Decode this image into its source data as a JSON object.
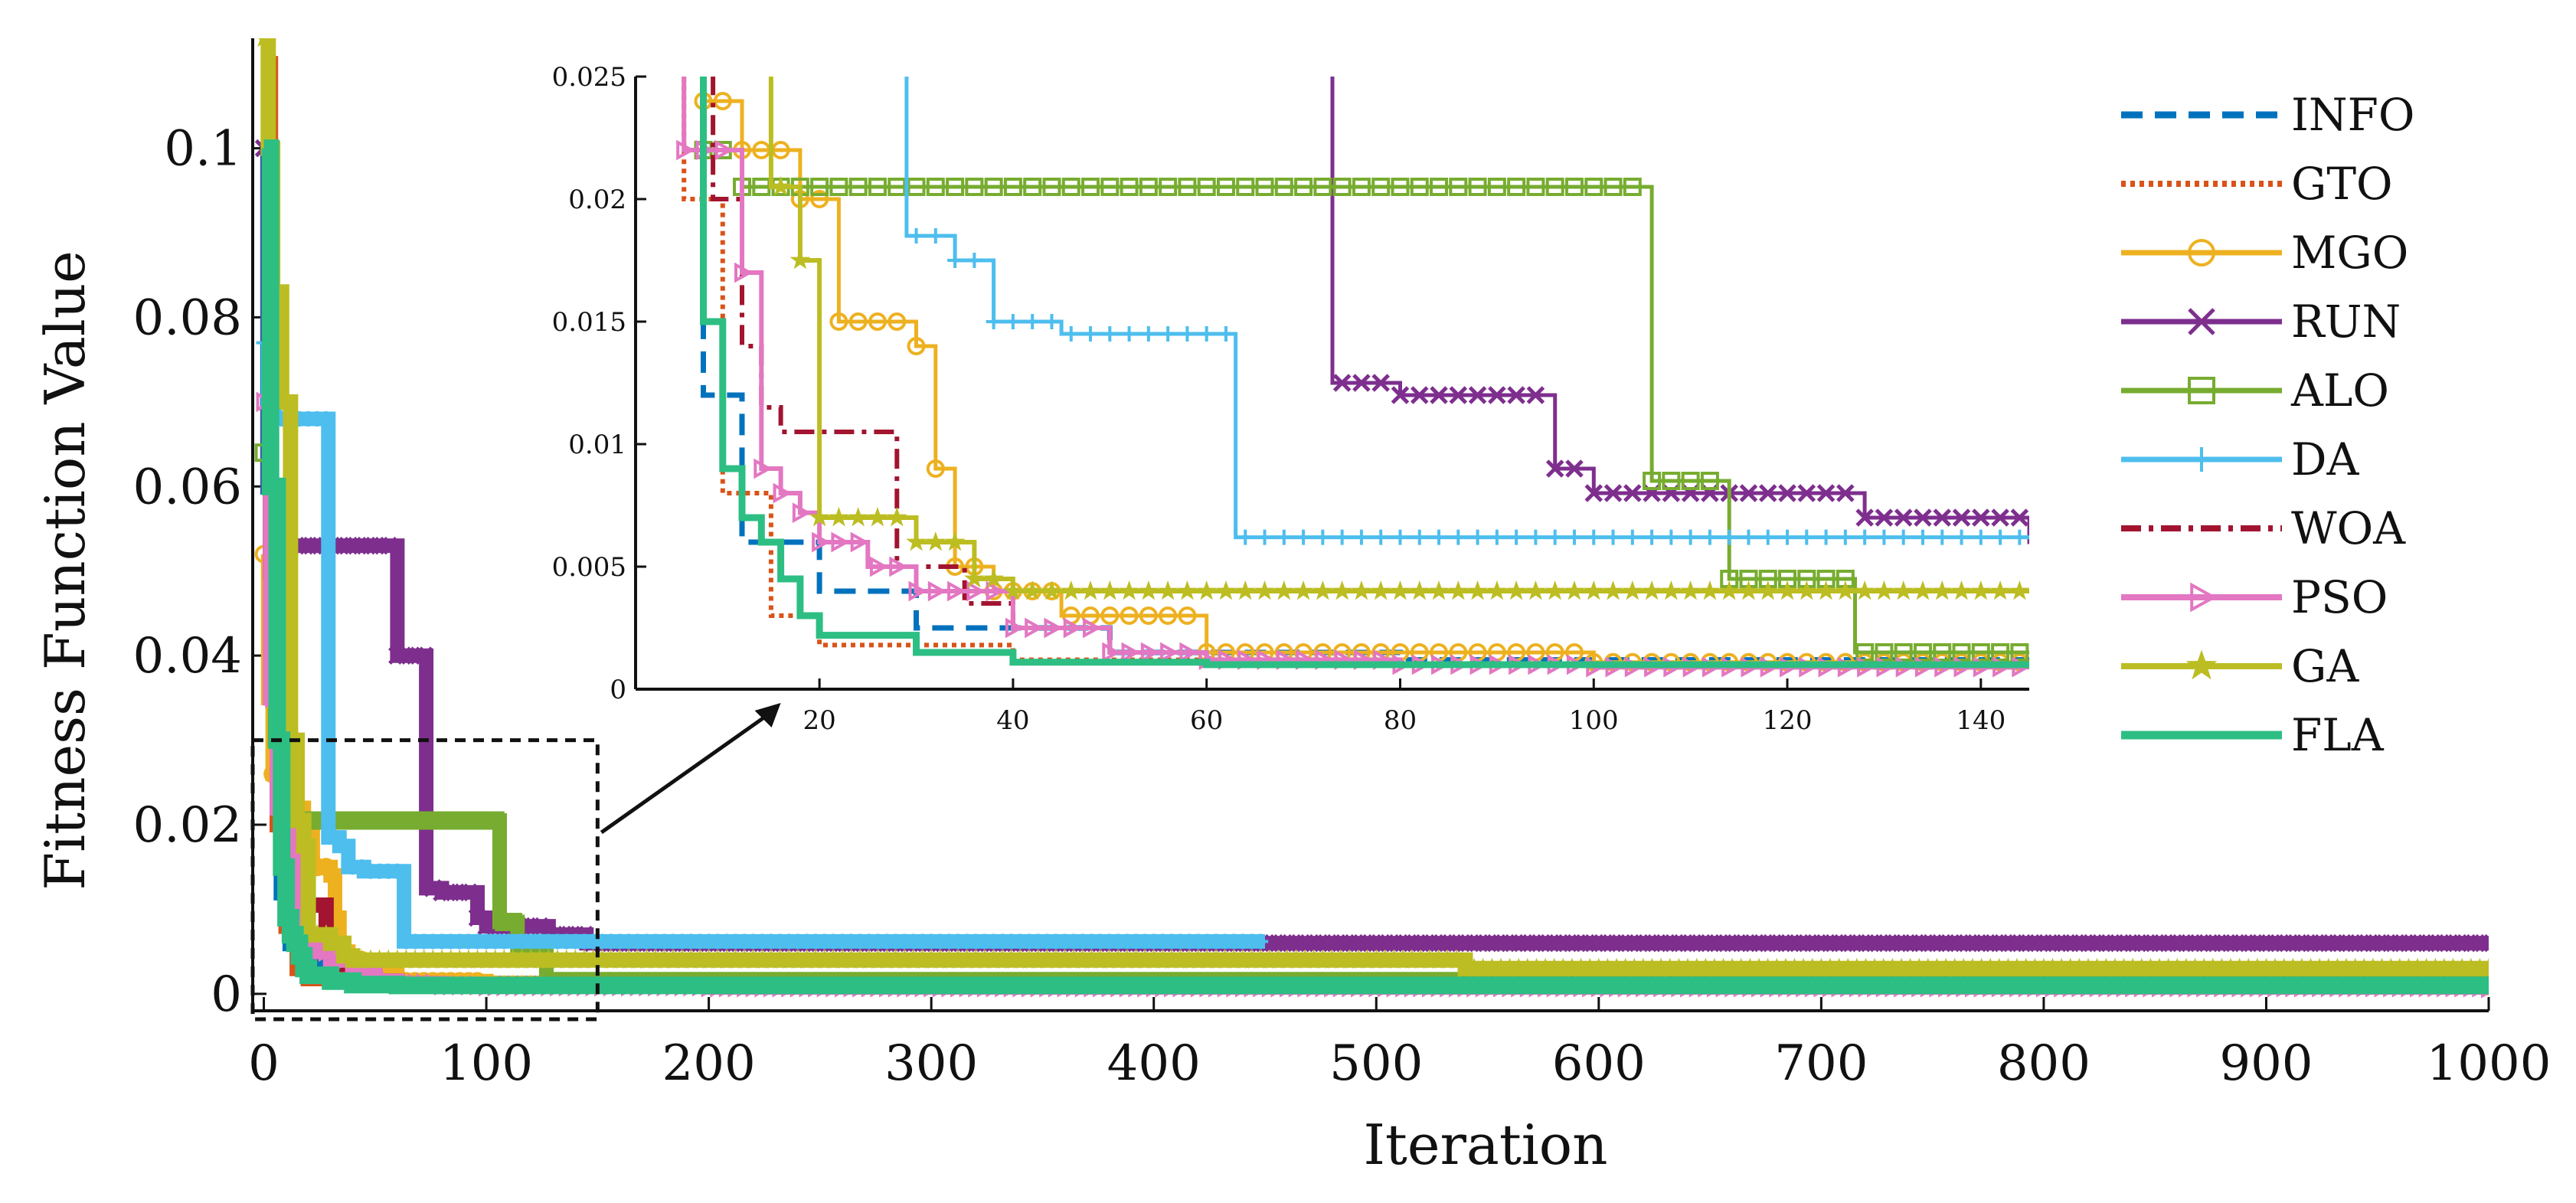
{
  "chart_data": [
    {
      "type": "line",
      "role": "main",
      "xlabel": "Iteration",
      "ylabel": "Fitness Function Value",
      "xlim": [
        -5,
        1000
      ],
      "ylim": [
        -0.002,
        0.113
      ],
      "xticks": [
        0,
        100,
        200,
        300,
        400,
        500,
        600,
        700,
        800,
        900,
        1000
      ],
      "yticks": [
        0,
        0.02,
        0.04,
        0.06,
        0.08,
        0.1
      ],
      "ytick_labels": [
        "0",
        "0.02",
        "0.04",
        "0.06",
        "0.08",
        "0.1"
      ],
      "series": [
        {
          "name": "INFO",
          "color": "#0072BD",
          "dash": "28 16",
          "width": 7,
          "marker": "none",
          "x": [
            0,
            2,
            5,
            8,
            12,
            20,
            30,
            50,
            80,
            150,
            300,
            1000
          ],
          "y": [
            0.1,
            0.06,
            0.03,
            0.012,
            0.006,
            0.004,
            0.0025,
            0.0015,
            0.0012,
            0.001,
            0.0009,
            0.0008
          ]
        },
        {
          "name": "GTO",
          "color": "#D95319",
          "dash": "6 6",
          "width": 6,
          "marker": "none",
          "x": [
            0,
            3,
            6,
            10,
            15,
            20,
            40,
            80,
            200,
            1000
          ],
          "y": [
            0.11,
            0.05,
            0.02,
            0.008,
            0.003,
            0.0018,
            0.0012,
            0.001,
            0.0009,
            0.0008
          ]
        },
        {
          "name": "MGO",
          "color": "#EDB120",
          "dash": "",
          "width": 5,
          "marker": "circle",
          "x": [
            0,
            2,
            4,
            8,
            12,
            18,
            22,
            25,
            30,
            32,
            34,
            38,
            45,
            60,
            100,
            300,
            1000
          ],
          "y": [
            0.052,
            0.035,
            0.026,
            0.024,
            0.022,
            0.02,
            0.015,
            0.015,
            0.014,
            0.009,
            0.005,
            0.004,
            0.003,
            0.0015,
            0.0011,
            0.001,
            0.0009
          ]
        },
        {
          "name": "RUN",
          "color": "#7E2F8E",
          "dash": "",
          "width": 5,
          "marker": "x",
          "x": [
            0,
            2,
            4,
            10,
            55,
            60,
            70,
            72,
            73,
            80,
            96,
            100,
            105,
            128,
            145,
            1000
          ],
          "y": [
            0.1,
            0.06,
            0.053,
            0.053,
            0.053,
            0.04,
            0.04,
            0.04,
            0.0125,
            0.012,
            0.009,
            0.008,
            0.008,
            0.007,
            0.006,
            0.006
          ]
        },
        {
          "name": "ALO",
          "color": "#77AC30",
          "dash": "",
          "width": 5,
          "marker": "square",
          "x": [
            0,
            3,
            5,
            8,
            12,
            18,
            105,
            106,
            113,
            114,
            125,
            127,
            145,
            1000
          ],
          "y": [
            0.064,
            0.045,
            0.03,
            0.022,
            0.0205,
            0.0205,
            0.0205,
            0.0085,
            0.0085,
            0.0045,
            0.0045,
            0.0015,
            0.0015,
            0.0015
          ]
        },
        {
          "name": "DA",
          "color": "#4DBEEE",
          "dash": "",
          "width": 5,
          "marker": "plus",
          "x": [
            0,
            2,
            5,
            10,
            15,
            22,
            29,
            30,
            34,
            38,
            45,
            62,
            63,
            145,
            450
          ],
          "y": [
            0.077,
            0.07,
            0.068,
            0.068,
            0.068,
            0.068,
            0.0185,
            0.0185,
            0.0175,
            0.015,
            0.0145,
            0.0145,
            0.0062,
            0.0062,
            0.0062
          ]
        },
        {
          "name": "WOA",
          "color": "#A2142F",
          "dash": "26 10 6 10",
          "width": 6,
          "marker": "none",
          "x": [
            0,
            3,
            6,
            9,
            12,
            14,
            16,
            22,
            28,
            35,
            40,
            50,
            60,
            75,
            100,
            1000
          ],
          "y": [
            0.08,
            0.05,
            0.03,
            0.02,
            0.014,
            0.0115,
            0.0105,
            0.0105,
            0.005,
            0.0035,
            0.0025,
            0.0015,
            0.0012,
            0.001,
            0.0009,
            0.0008
          ]
        },
        {
          "name": "PSO",
          "color": "#E377C2",
          "dash": "",
          "width": 6,
          "marker": "triangle",
          "x": [
            0,
            3,
            6,
            10,
            12,
            14,
            16,
            18,
            20,
            25,
            30,
            40,
            50,
            60,
            80,
            100,
            200,
            1000
          ],
          "y": [
            0.07,
            0.035,
            0.022,
            0.022,
            0.017,
            0.009,
            0.008,
            0.0072,
            0.006,
            0.005,
            0.004,
            0.0025,
            0.0015,
            0.0012,
            0.001,
            0.0009,
            0.0008,
            0.0007
          ]
        },
        {
          "name": "GA",
          "color": "#BCBD22",
          "dash": "",
          "width": 6,
          "marker": "star",
          "x": [
            0,
            2,
            4,
            8,
            12,
            15,
            18,
            20,
            30,
            36,
            40,
            100,
            530,
            540,
            1000
          ],
          "y": [
            0.113,
            0.1,
            0.083,
            0.07,
            0.03,
            0.0205,
            0.0175,
            0.007,
            0.006,
            0.0045,
            0.004,
            0.004,
            0.004,
            0.003,
            0.003
          ]
        },
        {
          "name": "FLA",
          "color": "#2DBE83",
          "dash": "",
          "width": 9,
          "marker": "none",
          "x": [
            0,
            3,
            6,
            8,
            10,
            12,
            14,
            16,
            18,
            20,
            30,
            40,
            60,
            100,
            200,
            530,
            1000
          ],
          "y": [
            0.1,
            0.06,
            0.03,
            0.015,
            0.009,
            0.007,
            0.006,
            0.0045,
            0.003,
            0.0022,
            0.0015,
            0.0011,
            0.001,
            0.001,
            0.001,
            0.001,
            0.001
          ]
        }
      ],
      "zoom_box": {
        "xlim": [
          -5,
          150
        ],
        "ylim": [
          -0.003,
          0.03
        ]
      }
    },
    {
      "type": "line",
      "role": "inset",
      "xlabel": "",
      "ylabel": "",
      "xlim": [
        1,
        145
      ],
      "ylim": [
        0,
        0.025
      ],
      "xticks": [
        20,
        40,
        60,
        80,
        100,
        120,
        140
      ],
      "yticks": [
        0,
        0.005,
        0.01,
        0.015,
        0.02,
        0.025
      ],
      "ytick_labels": [
        "0",
        "0.005",
        "0.01",
        "0.015",
        "0.02",
        "0.025"
      ],
      "source": "same series as main chart"
    }
  ],
  "legend": {
    "position": "right",
    "entries": [
      "INFO",
      "GTO",
      "MGO",
      "RUN",
      "ALO",
      "DA",
      "WOA",
      "PSO",
      "GA",
      "FLA"
    ]
  }
}
